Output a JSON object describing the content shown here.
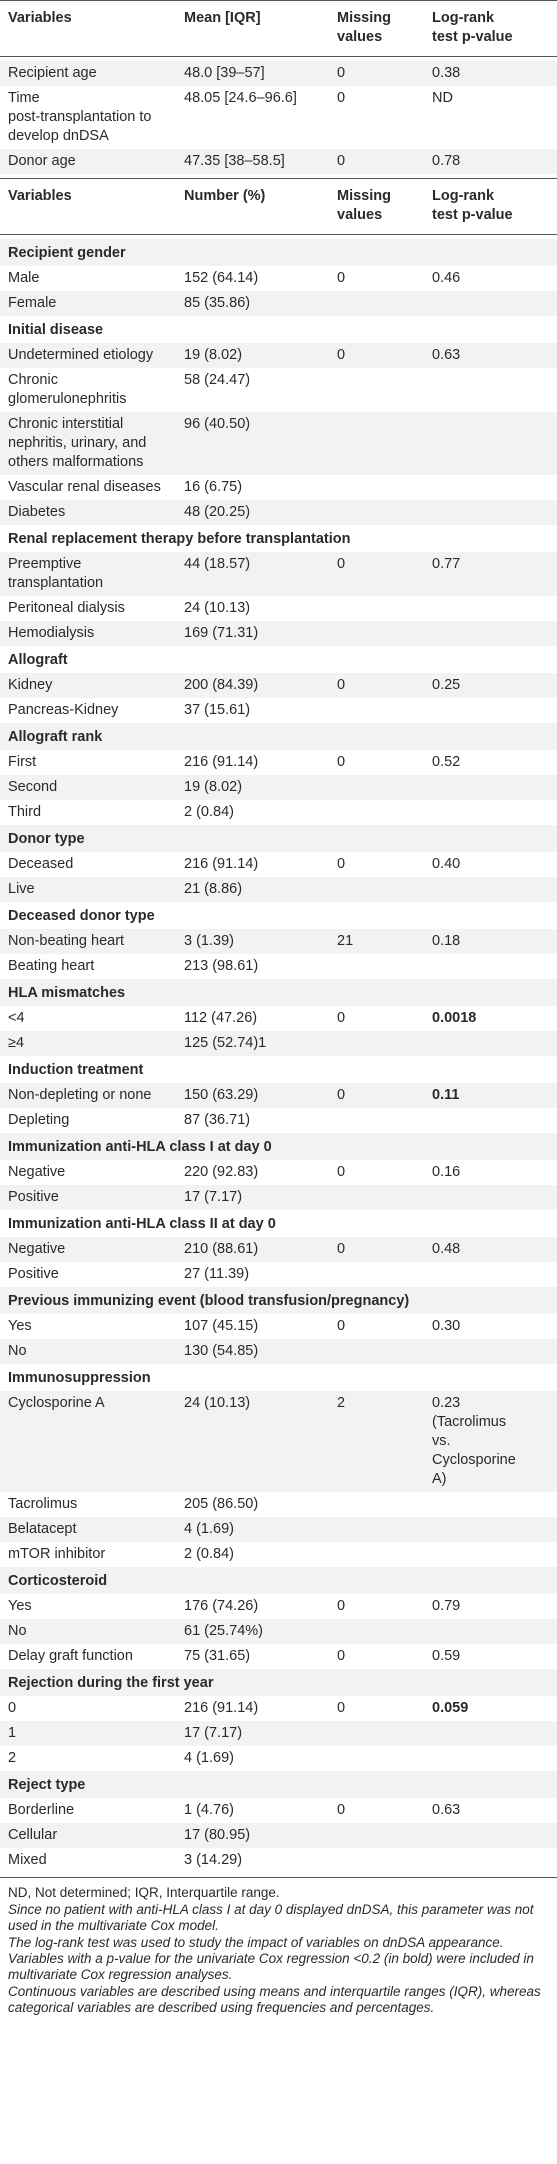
{
  "table1": {
    "headers": [
      "Variables",
      "Mean [IQR]",
      "Missing\nvalues",
      "Log-rank\ntest p-value"
    ],
    "rows": [
      {
        "variable": "Recipient age",
        "value": "48.0 [39–57]",
        "missing": "0",
        "p": "0.38"
      },
      {
        "variable": "Time\npost-transplantation to\ndevelop dnDSA",
        "value": "48.05 [24.6–96.6]",
        "missing": "0",
        "p": "ND"
      },
      {
        "variable": "Donor age",
        "value": "47.35 [38–58.5]",
        "missing": "0",
        "p": "0.78"
      }
    ]
  },
  "table2": {
    "headers": [
      "Variables",
      "Number (%)",
      "Missing\nvalues",
      "Log-rank\ntest p-value"
    ],
    "groups": [
      {
        "title": "Recipient gender",
        "rows": [
          {
            "variable": "Male",
            "value": "152 (64.14)",
            "missing": "0",
            "p": "0.46"
          },
          {
            "variable": "Female",
            "value": "85 (35.86)",
            "missing": "",
            "p": ""
          }
        ]
      },
      {
        "title": "Initial disease",
        "rows": [
          {
            "variable": "Undetermined etiology",
            "value": "19 (8.02)",
            "missing": "0",
            "p": "0.63"
          },
          {
            "variable": "Chronic\nglomerulonephritis",
            "value": "58 (24.47)",
            "missing": "",
            "p": ""
          },
          {
            "variable": "Chronic interstitial\nnephritis, urinary, and\nothers malformations",
            "value": "96 (40.50)",
            "missing": "",
            "p": ""
          },
          {
            "variable": "Vascular renal diseases",
            "value": "16 (6.75)",
            "missing": "",
            "p": ""
          },
          {
            "variable": "Diabetes",
            "value": "48 (20.25)",
            "missing": "",
            "p": ""
          }
        ]
      },
      {
        "title": "Renal replacement therapy before transplantation",
        "rows": [
          {
            "variable": "Preemptive\ntransplantation",
            "value": "44 (18.57)",
            "missing": "0",
            "p": "0.77"
          },
          {
            "variable": "Peritoneal dialysis",
            "value": "24 (10.13)",
            "missing": "",
            "p": ""
          },
          {
            "variable": "Hemodialysis",
            "value": "169 (71.31)",
            "missing": "",
            "p": ""
          }
        ]
      },
      {
        "title": "Allograft",
        "rows": [
          {
            "variable": "Kidney",
            "value": "200 (84.39)",
            "missing": "0",
            "p": "0.25"
          },
          {
            "variable": "Pancreas-Kidney",
            "value": "37 (15.61)",
            "missing": "",
            "p": ""
          }
        ]
      },
      {
        "title": "Allograft rank",
        "rows": [
          {
            "variable": "First",
            "value": "216 (91.14)",
            "missing": "0",
            "p": "0.52"
          },
          {
            "variable": "Second",
            "value": "19 (8.02)",
            "missing": "",
            "p": ""
          },
          {
            "variable": "Third",
            "value": "2 (0.84)",
            "missing": "",
            "p": ""
          }
        ]
      },
      {
        "title": "Donor type",
        "rows": [
          {
            "variable": "Deceased",
            "value": "216 (91.14)",
            "missing": "0",
            "p": "0.40"
          },
          {
            "variable": "Live",
            "value": "21 (8.86)",
            "missing": "",
            "p": ""
          }
        ]
      },
      {
        "title": "Deceased donor type",
        "rows": [
          {
            "variable": "Non-beating heart",
            "value": "3 (1.39)",
            "missing": "21",
            "p": "0.18"
          },
          {
            "variable": "Beating heart",
            "value": "213 (98.61)",
            "missing": "",
            "p": ""
          }
        ]
      },
      {
        "title": "HLA mismatches",
        "rows": [
          {
            "variable": "<4",
            "value": "112 (47.26)",
            "missing": "0",
            "p": "0.0018",
            "p_bold": true
          },
          {
            "variable": "≥4",
            "value": "125 (52.74)1",
            "missing": "",
            "p": ""
          }
        ]
      },
      {
        "title": "Induction treatment",
        "rows": [
          {
            "variable": "Non-depleting or none",
            "value": "150 (63.29)",
            "missing": "0",
            "p": "0.11",
            "p_bold": true
          },
          {
            "variable": "Depleting",
            "value": "87 (36.71)",
            "missing": "",
            "p": ""
          }
        ]
      },
      {
        "title": "Immunization anti-HLA class I at day 0",
        "rows": [
          {
            "variable": "Negative",
            "value": "220 (92.83)",
            "missing": "0",
            "p": "0.16"
          },
          {
            "variable": "Positive",
            "value": "17 (7.17)",
            "missing": "",
            "p": ""
          }
        ]
      },
      {
        "title": "Immunization anti-HLA class II at day 0",
        "rows": [
          {
            "variable": "Negative",
            "value": "210 (88.61)",
            "missing": "0",
            "p": "0.48"
          },
          {
            "variable": "Positive",
            "value": "27 (11.39)",
            "missing": "",
            "p": ""
          }
        ]
      },
      {
        "title": "Previous immunizing event (blood transfusion/pregnancy)",
        "rows": [
          {
            "variable": "Yes",
            "value": "107 (45.15)",
            "missing": "0",
            "p": "0.30"
          },
          {
            "variable": "No",
            "value": "130 (54.85)",
            "missing": "",
            "p": ""
          }
        ]
      },
      {
        "title": "Immunosuppression",
        "rows": [
          {
            "variable": "Cyclosporine A",
            "value": "24 (10.13)",
            "missing": "2",
            "p": "0.23\n(Tacrolimus\nvs.\nCyclosporine\nA)"
          },
          {
            "variable": "Tacrolimus",
            "value": "205 (86.50)",
            "missing": "",
            "p": ""
          },
          {
            "variable": "Belatacept",
            "value": "4 (1.69)",
            "missing": "",
            "p": ""
          },
          {
            "variable": "mTOR inhibitor",
            "value": "2 (0.84)",
            "missing": "",
            "p": ""
          }
        ]
      },
      {
        "title": "Corticosteroid",
        "rows": [
          {
            "variable": "Yes",
            "value": "176 (74.26)",
            "missing": "0",
            "p": "0.79"
          },
          {
            "variable": "No",
            "value": "61 (25.74%)",
            "missing": "",
            "p": ""
          },
          {
            "variable": "Delay graft function",
            "value": "75 (31.65)",
            "missing": "0",
            "p": "0.59"
          }
        ]
      },
      {
        "title": "Rejection during the first year",
        "rows": [
          {
            "variable": "0",
            "value": "216 (91.14)",
            "missing": "0",
            "p": "0.059",
            "p_bold": true
          },
          {
            "variable": "1",
            "value": "17 (7.17)",
            "missing": "",
            "p": ""
          },
          {
            "variable": "2",
            "value": "4 (1.69)",
            "missing": "",
            "p": ""
          }
        ]
      },
      {
        "title": "Reject type",
        "rows": [
          {
            "variable": "Borderline",
            "value": "1 (4.76)",
            "missing": "0",
            "p": "0.63"
          },
          {
            "variable": "Cellular",
            "value": "17 (80.95)",
            "missing": "",
            "p": ""
          },
          {
            "variable": "Mixed",
            "value": "3 (14.29)",
            "missing": "",
            "p": ""
          }
        ]
      }
    ]
  },
  "footnotes": [
    {
      "text": "ND, Not determined; IQR, Interquartile range.",
      "italic": false
    },
    {
      "text": "Since no patient with anti-HLA class I at day 0 displayed dnDSA, this parameter was not used in the multivariate Cox model.",
      "italic": true
    },
    {
      "text": "The log-rank test was used to study the impact of variables on dnDSA appearance. Variables with a p-value for the univariate Cox regression <0.2 (in bold) were included in multivariate Cox regression analyses.",
      "italic": true
    },
    {
      "text": "Continuous variables are described using means and interquartile ranges (IQR), whereas categorical variables are described using frequencies and percentages.",
      "italic": true
    }
  ],
  "colors": {
    "shade": "#f2f2f2",
    "rule": "#555555",
    "text": "#2a2a2a"
  }
}
